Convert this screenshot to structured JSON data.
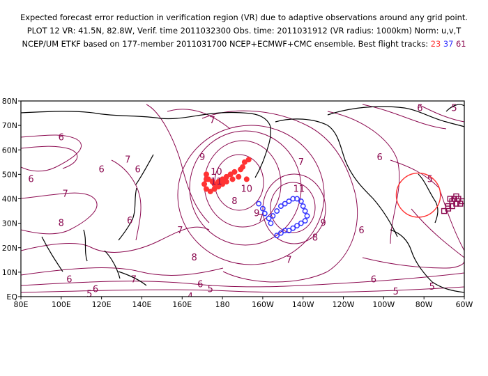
{
  "header": {
    "line1": "Expected forecast error reduction in verification region (VR) due to adaptive observations around any grid point.",
    "line2": "PLOT 12 VR: 41.5N, 82.8W, Verif. time 2011032300 Obs. time: 2011031912 (VR radius: 1000km) Norm: u,v,T",
    "line3_prefix": "NCEP/UM ETKF based on 177-member 2011031700 NCEP+ECMWF+CMC ensemble. Best flight tracks: ",
    "track_red": "23",
    "track_blue": "37",
    "track_purple": "61"
  },
  "map": {
    "lon_labels": [
      "80E",
      "100E",
      "120E",
      "140E",
      "160E",
      "180",
      "160W",
      "140W",
      "120W",
      "100W",
      "80W",
      "60W"
    ],
    "lat_labels": [
      "80N",
      "70N",
      "60N",
      "50N",
      "40N",
      "30N",
      "20N",
      "10N",
      "EQ"
    ],
    "contour_labels": [
      {
        "t": "6",
        "lon": 100,
        "lat": 65
      },
      {
        "t": "7",
        "lon": 175,
        "lat": 72
      },
      {
        "t": "6",
        "lon": 138,
        "lat": 52
      },
      {
        "t": "7",
        "lon": 133,
        "lat": 56
      },
      {
        "t": "6",
        "lon": 120,
        "lat": 52
      },
      {
        "t": "6",
        "lon": 85,
        "lat": 48
      },
      {
        "t": "7",
        "lon": 102,
        "lat": 42
      },
      {
        "t": "8",
        "lon": 100,
        "lat": 30
      },
      {
        "t": "6",
        "lon": 134,
        "lat": 31
      },
      {
        "t": "7",
        "lon": 159,
        "lat": 27
      },
      {
        "t": "8",
        "lon": 166,
        "lat": 16
      },
      {
        "t": "7",
        "lon": 136,
        "lat": 7
      },
      {
        "t": "6",
        "lon": 117,
        "lat": 3
      },
      {
        "t": "6",
        "lon": 104,
        "lat": 7
      },
      {
        "t": "5",
        "lon": 114,
        "lat": 1
      },
      {
        "t": "6",
        "lon": 169,
        "lat": 5
      },
      {
        "t": "5",
        "lon": 174,
        "lat": 3
      },
      {
        "t": "4",
        "lon": 164,
        "lat": 0
      },
      {
        "t": "10",
        "lon": 177,
        "lat": 51
      },
      {
        "t": "11",
        "lon": 177,
        "lat": 47
      },
      {
        "t": "9",
        "lon": 170,
        "lat": 57
      },
      {
        "t": "10",
        "lon": 192,
        "lat": 44
      },
      {
        "t": "8",
        "lon": 186,
        "lat": 39
      },
      {
        "t": "9",
        "lon": 197,
        "lat": 34
      },
      {
        "t": "11",
        "lon": 218,
        "lat": 44
      },
      {
        "t": "9",
        "lon": 230,
        "lat": 30
      },
      {
        "t": "8",
        "lon": 226,
        "lat": 24
      },
      {
        "t": "7",
        "lon": 199,
        "lat": 32
      },
      {
        "t": "7",
        "lon": 213,
        "lat": 15
      },
      {
        "t": "6",
        "lon": 258,
        "lat": 57
      },
      {
        "t": "7",
        "lon": 219,
        "lat": 55
      },
      {
        "t": "5",
        "lon": 295,
        "lat": 77
      },
      {
        "t": "6",
        "lon": 278,
        "lat": 77
      },
      {
        "t": "5",
        "lon": 283,
        "lat": 48
      },
      {
        "t": "6",
        "lon": 249,
        "lat": 27
      },
      {
        "t": "6",
        "lon": 255,
        "lat": 7
      },
      {
        "t": "5",
        "lon": 284,
        "lat": 4
      },
      {
        "t": "5",
        "lon": 266,
        "lat": 2
      }
    ]
  },
  "tracks": {
    "red": [
      [
        193,
        56
      ],
      [
        191,
        55
      ],
      [
        190,
        53
      ],
      [
        189,
        52
      ],
      [
        186,
        51
      ],
      [
        184,
        50
      ],
      [
        182,
        49
      ],
      [
        180,
        48
      ],
      [
        178,
        47
      ],
      [
        176,
        46
      ],
      [
        175,
        47
      ],
      [
        173,
        48
      ],
      [
        172,
        50
      ],
      [
        172,
        48
      ],
      [
        171,
        46
      ],
      [
        172,
        44
      ],
      [
        174,
        43
      ],
      [
        176,
        44
      ],
      [
        178,
        45
      ],
      [
        180,
        46
      ],
      [
        182,
        47
      ],
      [
        185,
        48
      ],
      [
        188,
        49
      ],
      [
        192,
        48
      ]
    ],
    "blue": [
      [
        198,
        38
      ],
      [
        200,
        36
      ],
      [
        201,
        34
      ],
      [
        203,
        32
      ],
      [
        204,
        30
      ],
      [
        205,
        33
      ],
      [
        207,
        35
      ],
      [
        209,
        37
      ],
      [
        211,
        38
      ],
      [
        213,
        39
      ],
      [
        215,
        40
      ],
      [
        217,
        40
      ],
      [
        219,
        39
      ],
      [
        220,
        37
      ],
      [
        221,
        35
      ],
      [
        222,
        33
      ],
      [
        221,
        31
      ],
      [
        219,
        30
      ],
      [
        217,
        29
      ],
      [
        215,
        28
      ],
      [
        213,
        27
      ],
      [
        211,
        27
      ],
      [
        209,
        26
      ],
      [
        207,
        25
      ]
    ],
    "purple": [
      [
        295,
        40
      ],
      [
        297,
        40
      ],
      [
        299,
        39
      ],
      [
        298,
        38
      ],
      [
        296,
        38
      ],
      [
        294,
        37
      ],
      [
        292,
        36
      ],
      [
        290,
        35
      ],
      [
        292,
        37
      ],
      [
        294,
        39
      ],
      [
        296,
        41
      ],
      [
        293,
        40
      ]
    ]
  },
  "verification_region": {
    "lon": 277.2,
    "lat": 41.5,
    "radius_km": 1000
  },
  "colors": {
    "contour": "#8b0a50",
    "coast": "#000000",
    "red_track": "#ff3333",
    "blue_track": "#3333ff",
    "purple_track": "#8b0a50",
    "vr_circle": "#ff3333"
  }
}
